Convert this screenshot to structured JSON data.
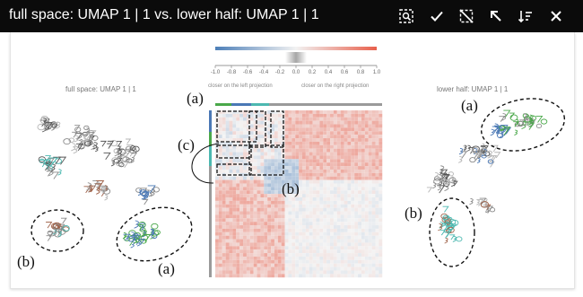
{
  "window": {
    "title": "full space: UMAP 1 | 1 vs. lower half: UMAP 1 | 1",
    "toolbar_icons": [
      "zoom-selection-icon",
      "check-icon",
      "deselect-icon",
      "arrow-up-left-icon",
      "sort-icon",
      "close-icon"
    ]
  },
  "left_projection": {
    "label": "full space: UMAP 1 | 1"
  },
  "right_projection": {
    "label": "lower half: UMAP 1 | 1"
  },
  "colorbar": {
    "ticks": [
      "-1.0",
      "-0.8",
      "-0.6",
      "-0.4",
      "-0.2",
      "0.0",
      "0.2",
      "0.4",
      "0.6",
      "0.8",
      "1.0"
    ],
    "left_caption": "closer on the left projection",
    "right_caption": "closer on the right projection",
    "colors": {
      "negative": "#4d7fb8",
      "neutral": "#f2f2f2",
      "positive": "#e8604c"
    }
  },
  "annotations": {
    "a_matrix": "(a)",
    "c_matrix": "(c)",
    "b_matrix": "(b)",
    "b_left": "(b)",
    "a_left": "(a)",
    "a_right": "(a)",
    "b_right": "(b)"
  },
  "cluster_colors": {
    "green": "#4aa84a",
    "blue": "#4a78b5",
    "teal": "#4cb8b0",
    "brown": "#a0634a",
    "grey": "#8a8a8a"
  }
}
